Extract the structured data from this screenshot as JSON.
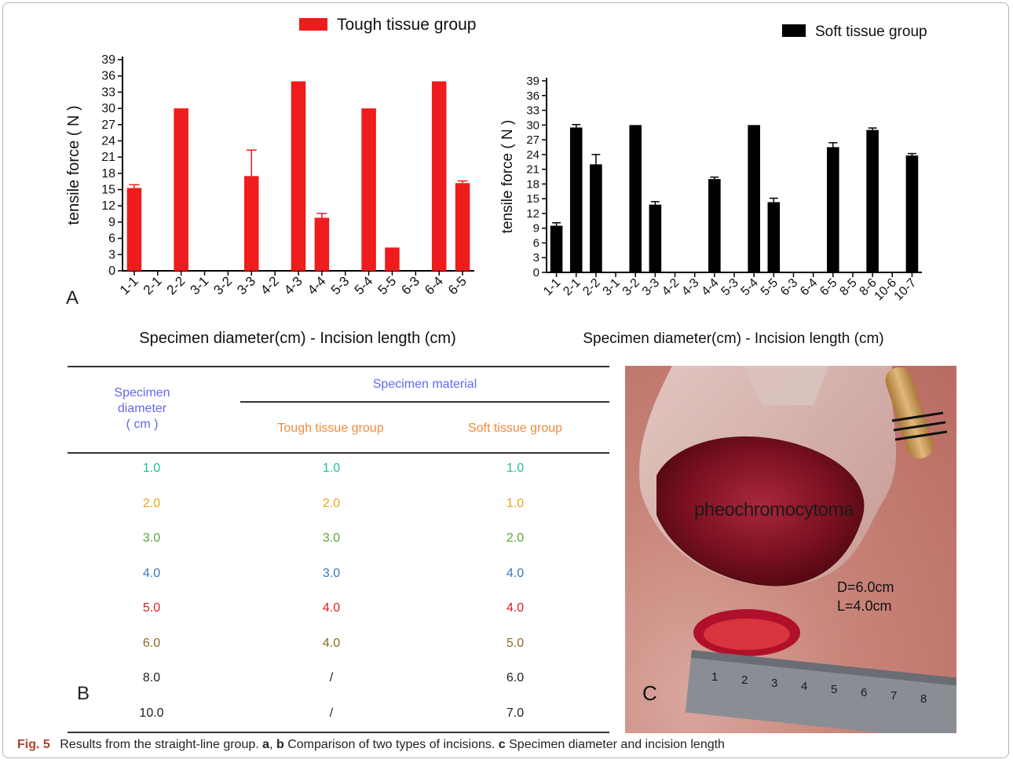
{
  "chart_data": [
    {
      "type": "bar",
      "panel": "A",
      "legend": "Tough tissue group",
      "legend_position": "top",
      "xlabel": "Specimen diameter(cm) - Incision length (cm)",
      "ylabel": "tensile force ( N )",
      "ylim": [
        0,
        39
      ],
      "yticks": [
        0,
        3,
        6,
        9,
        12,
        15,
        18,
        21,
        24,
        27,
        30,
        33,
        36,
        39
      ],
      "categories": [
        "1-1",
        "2-1",
        "2-2",
        "3-1",
        "3-2",
        "3-3",
        "4-2",
        "4-3",
        "4-4",
        "5-3",
        "5-4",
        "5-5",
        "6-3",
        "6-4",
        "6-5"
      ],
      "values": [
        15.3,
        0,
        30,
        0,
        0,
        17.5,
        0,
        35,
        9.8,
        0,
        30,
        4.3,
        0,
        35,
        16.2
      ],
      "errors": [
        0.6,
        0,
        0,
        0,
        0,
        4.8,
        0,
        0,
        0.8,
        0,
        0,
        0,
        0,
        0,
        0.4
      ],
      "color": "#ee1c1c"
    },
    {
      "type": "bar",
      "legend": "Soft tissue group",
      "legend_position": "top-right",
      "xlabel": "Specimen diameter(cm) - Incision length (cm)",
      "ylabel": "tensile force ( N )",
      "ylim": [
        0,
        39
      ],
      "yticks": [
        0,
        3,
        6,
        9,
        12,
        15,
        18,
        21,
        24,
        27,
        30,
        33,
        36,
        39
      ],
      "categories": [
        "1-1",
        "2-1",
        "2-2",
        "3-1",
        "3-2",
        "3-3",
        "4-2",
        "4-3",
        "4-4",
        "5-3",
        "5-4",
        "5-5",
        "6-3",
        "6-4",
        "6-5",
        "8-5",
        "8-6",
        "10-6",
        "10-7"
      ],
      "values": [
        9.5,
        29.5,
        22,
        0,
        30,
        13.8,
        0,
        0,
        19,
        0,
        30,
        14.3,
        0,
        0,
        25.5,
        0,
        29,
        0,
        23.8
      ],
      "errors": [
        0.6,
        0.6,
        2,
        0,
        0,
        0.6,
        0,
        0,
        0.4,
        0,
        0,
        0.8,
        0,
        0,
        0.9,
        0,
        0.4,
        0,
        0.4
      ],
      "color": "#000000"
    }
  ],
  "table": {
    "panel": "B",
    "header_diameter": [
      "Specimen",
      "diameter",
      "( cm )"
    ],
    "header_material": "Specimen material",
    "header_tough": "Tough tissue group",
    "header_soft": "Soft tissue group",
    "rows": [
      {
        "d": "1.0",
        "tough": "1.0",
        "soft": "1.0",
        "color": "#1fbf9a"
      },
      {
        "d": "2.0",
        "tough": "2.0",
        "soft": "1.0",
        "color": "#e6a817"
      },
      {
        "d": "3.0",
        "tough": "3.0",
        "soft": "2.0",
        "color": "#5aa832"
      },
      {
        "d": "4.0",
        "tough": "3.0",
        "soft": "4.0",
        "color": "#3a78c2"
      },
      {
        "d": "5.0",
        "tough": "4.0",
        "soft": "4.0",
        "color": "#e31b23"
      },
      {
        "d": "6.0",
        "tough": "4.0",
        "soft": "5.0",
        "color": "#8a6d1c"
      },
      {
        "d": "8.0",
        "tough": "/",
        "soft": "6.0",
        "color": "#222222"
      },
      {
        "d": "10.0",
        "tough": "/",
        "soft": "7.0",
        "color": "#222222"
      }
    ],
    "header_color": "#6666ee",
    "subheader_color": "#f08a3a"
  },
  "photo": {
    "panel": "C",
    "label_tumor": "pheochromocytoma",
    "label_d": "D=6.0cm",
    "label_l": "L=4.0cm",
    "ruler_digits": [
      "1",
      "2",
      "3",
      "4",
      "5",
      "6",
      "7",
      "8"
    ]
  },
  "caption": {
    "fig_label": "Fig. 5",
    "part1": "Results from the straight-line group.",
    "a": "a",
    "sep1": ",",
    "b": "b",
    "part2": "Comparison of two types of incisions.",
    "c": "c",
    "part3": "Specimen diameter and incision length"
  }
}
